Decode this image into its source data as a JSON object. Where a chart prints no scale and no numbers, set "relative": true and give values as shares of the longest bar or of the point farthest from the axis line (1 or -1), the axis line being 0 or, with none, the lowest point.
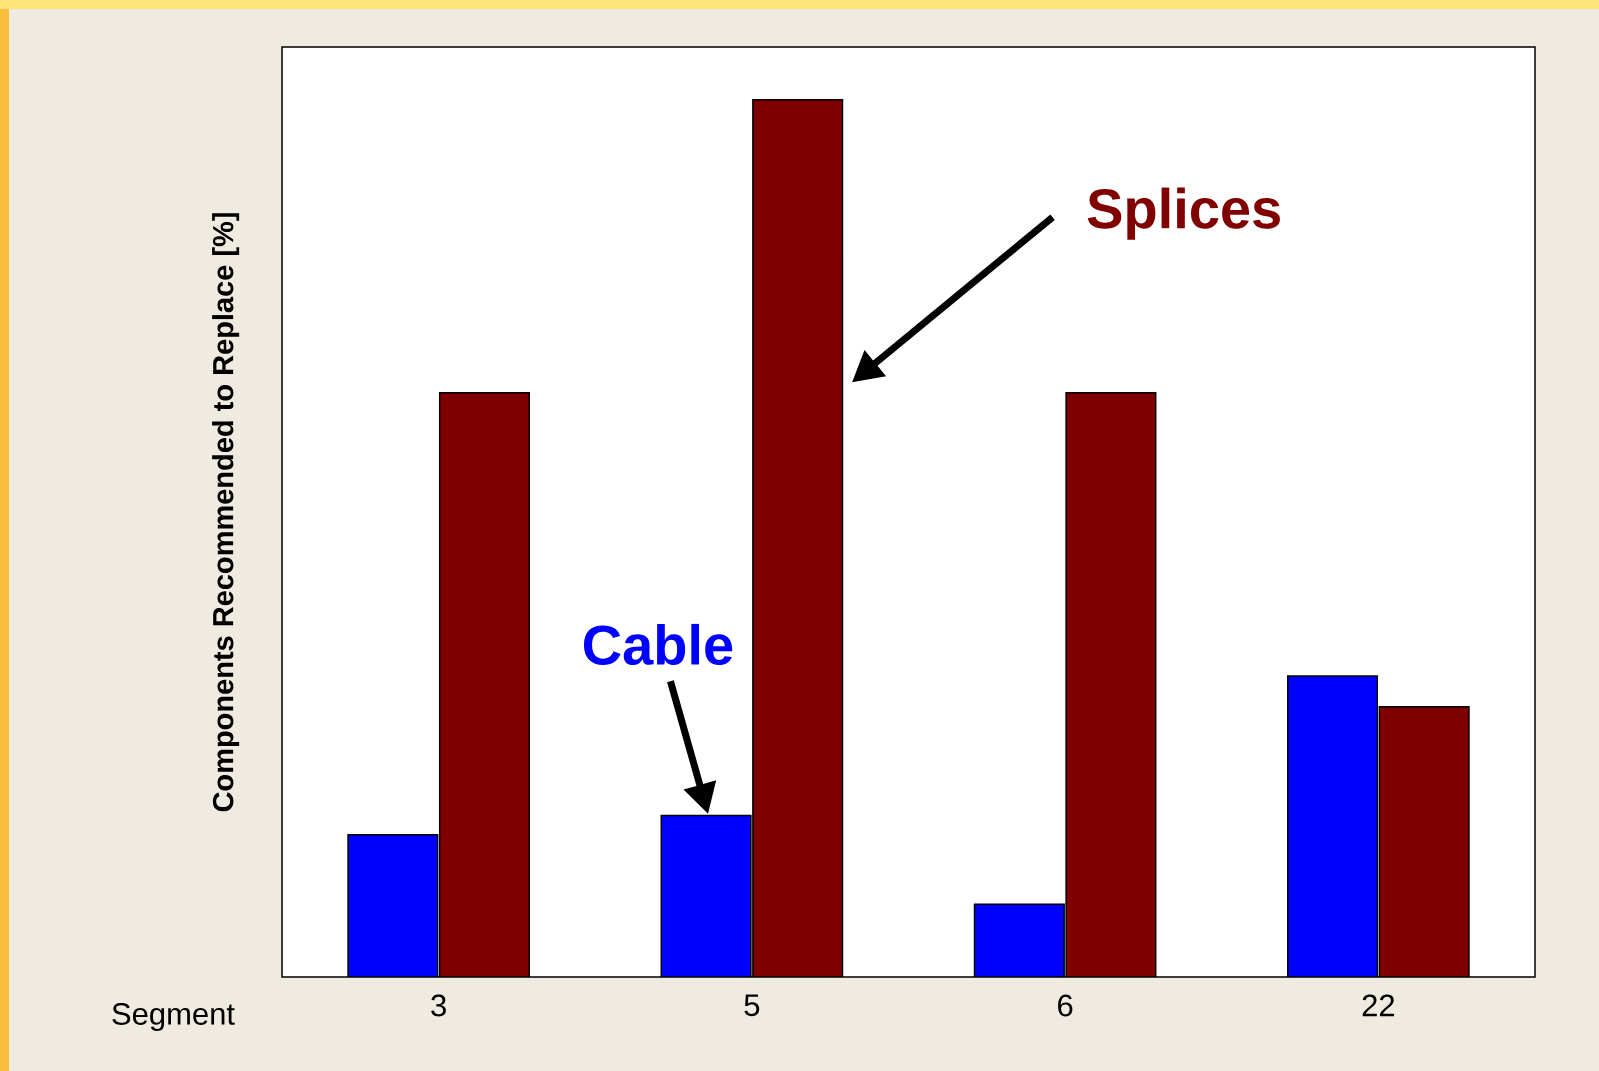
{
  "chart_data": {
    "type": "bar",
    "relative": true,
    "xlabel": "Segment",
    "ylabel": "Components Recommended to Replace [%]",
    "categories": [
      "3",
      "5",
      "6",
      "22"
    ],
    "series": [
      {
        "name": "Cable",
        "color": "#0000ff",
        "values": [
          0.162,
          0.184,
          0.083,
          0.343
        ]
      },
      {
        "name": "Splices",
        "color": "#800000",
        "values": [
          0.666,
          1,
          0.666,
          0.308
        ]
      }
    ],
    "legend": false,
    "grid": false
  }
}
